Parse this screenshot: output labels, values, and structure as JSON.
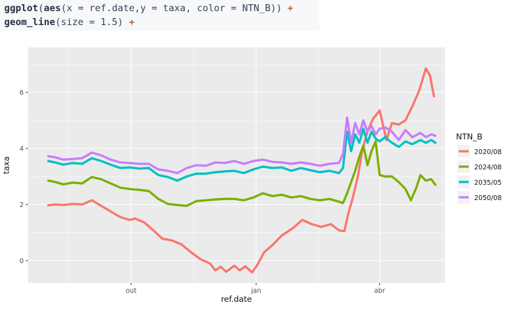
{
  "code": {
    "line1": "ggplot(aes(x = ref.date,y = taxa, color = NTN_B)) +",
    "line2": "geom_line(size = 1.5) +"
  },
  "colors": {
    "panel_bg": "#ebebeb",
    "grid": "#ffffff",
    "series": [
      "#f8766d",
      "#7cae00",
      "#00bfc4",
      "#c77cff"
    ]
  },
  "chart_data": {
    "type": "line",
    "title": "",
    "xlabel": "ref.date",
    "ylabel": "taxa",
    "x_ticks": [
      {
        "label": "out",
        "date": "2019-10-01"
      },
      {
        "label": "jan",
        "date": "2020-01-01"
      },
      {
        "label": "abr",
        "date": "2020-04-01"
      }
    ],
    "y_ticks": [
      0,
      2,
      4,
      6
    ],
    "xlim": [
      "2019-07-17",
      "2020-05-19"
    ],
    "ylim": [
      -0.8,
      7.6
    ],
    "grid": true,
    "legend_title": "NTN_B",
    "legend_position": "right",
    "series": [
      {
        "name": "2020/08",
        "color": "#f8766d",
        "points": [
          [
            "2019-08-01",
            1.97
          ],
          [
            "2019-08-06",
            2.0
          ],
          [
            "2019-08-12",
            1.98
          ],
          [
            "2019-08-19",
            2.02
          ],
          [
            "2019-08-26",
            2.0
          ],
          [
            "2019-09-02",
            2.15
          ],
          [
            "2019-09-09",
            1.95
          ],
          [
            "2019-09-16",
            1.75
          ],
          [
            "2019-09-23",
            1.55
          ],
          [
            "2019-09-30",
            1.45
          ],
          [
            "2019-10-04",
            1.5
          ],
          [
            "2019-10-11",
            1.35
          ],
          [
            "2019-10-18",
            1.05
          ],
          [
            "2019-10-24",
            0.78
          ],
          [
            "2019-10-31",
            0.72
          ],
          [
            "2019-11-07",
            0.58
          ],
          [
            "2019-11-14",
            0.3
          ],
          [
            "2019-11-21",
            0.05
          ],
          [
            "2019-11-28",
            -0.1
          ],
          [
            "2019-12-02",
            -0.35
          ],
          [
            "2019-12-06",
            -0.22
          ],
          [
            "2019-12-10",
            -0.4
          ],
          [
            "2019-12-16",
            -0.18
          ],
          [
            "2019-12-20",
            -0.35
          ],
          [
            "2019-12-24",
            -0.2
          ],
          [
            "2019-12-29",
            -0.42
          ],
          [
            "2020-01-02",
            -0.15
          ],
          [
            "2020-01-07",
            0.3
          ],
          [
            "2020-01-13",
            0.55
          ],
          [
            "2020-01-20",
            0.9
          ],
          [
            "2020-01-28",
            1.15
          ],
          [
            "2020-02-04",
            1.45
          ],
          [
            "2020-02-11",
            1.3
          ],
          [
            "2020-02-18",
            1.2
          ],
          [
            "2020-02-25",
            1.3
          ],
          [
            "2020-03-02",
            1.08
          ],
          [
            "2020-03-06",
            1.05
          ],
          [
            "2020-03-09",
            1.7
          ],
          [
            "2020-03-12",
            2.2
          ],
          [
            "2020-03-16",
            3.0
          ],
          [
            "2020-03-19",
            3.9
          ],
          [
            "2020-03-23",
            4.6
          ],
          [
            "2020-03-27",
            5.05
          ],
          [
            "2020-04-01",
            5.35
          ],
          [
            "2020-04-06",
            4.3
          ],
          [
            "2020-04-10",
            4.9
          ],
          [
            "2020-04-15",
            4.85
          ],
          [
            "2020-04-20",
            5.0
          ],
          [
            "2020-04-25",
            5.5
          ],
          [
            "2020-04-30",
            6.05
          ],
          [
            "2020-05-05",
            6.85
          ],
          [
            "2020-05-08",
            6.6
          ],
          [
            "2020-05-11",
            5.85
          ]
        ]
      },
      {
        "name": "2024/08",
        "color": "#7cae00",
        "points": [
          [
            "2019-08-01",
            2.85
          ],
          [
            "2019-08-06",
            2.8
          ],
          [
            "2019-08-12",
            2.72
          ],
          [
            "2019-08-19",
            2.78
          ],
          [
            "2019-08-26",
            2.75
          ],
          [
            "2019-09-02",
            2.98
          ],
          [
            "2019-09-09",
            2.9
          ],
          [
            "2019-09-16",
            2.75
          ],
          [
            "2019-09-23",
            2.6
          ],
          [
            "2019-09-30",
            2.55
          ],
          [
            "2019-10-07",
            2.52
          ],
          [
            "2019-10-14",
            2.48
          ],
          [
            "2019-10-21",
            2.2
          ],
          [
            "2019-10-28",
            2.02
          ],
          [
            "2019-11-04",
            1.98
          ],
          [
            "2019-11-11",
            1.95
          ],
          [
            "2019-11-18",
            2.12
          ],
          [
            "2019-11-25",
            2.15
          ],
          [
            "2019-12-02",
            2.18
          ],
          [
            "2019-12-09",
            2.2
          ],
          [
            "2019-12-16",
            2.2
          ],
          [
            "2019-12-23",
            2.15
          ],
          [
            "2019-12-30",
            2.25
          ],
          [
            "2020-01-06",
            2.4
          ],
          [
            "2020-01-13",
            2.3
          ],
          [
            "2020-01-20",
            2.35
          ],
          [
            "2020-01-27",
            2.25
          ],
          [
            "2020-02-03",
            2.3
          ],
          [
            "2020-02-10",
            2.2
          ],
          [
            "2020-02-17",
            2.15
          ],
          [
            "2020-02-24",
            2.2
          ],
          [
            "2020-03-02",
            2.1
          ],
          [
            "2020-03-05",
            2.05
          ],
          [
            "2020-03-08",
            2.4
          ],
          [
            "2020-03-11",
            2.8
          ],
          [
            "2020-03-14",
            3.2
          ],
          [
            "2020-03-17",
            3.7
          ],
          [
            "2020-03-20",
            4.1
          ],
          [
            "2020-03-23",
            3.4
          ],
          [
            "2020-03-26",
            3.9
          ],
          [
            "2020-03-29",
            4.25
          ],
          [
            "2020-04-01",
            3.05
          ],
          [
            "2020-04-05",
            3.0
          ],
          [
            "2020-04-10",
            3.0
          ],
          [
            "2020-04-15",
            2.8
          ],
          [
            "2020-04-20",
            2.55
          ],
          [
            "2020-04-24",
            2.15
          ],
          [
            "2020-04-28",
            2.6
          ],
          [
            "2020-05-01",
            3.05
          ],
          [
            "2020-05-05",
            2.85
          ],
          [
            "2020-05-09",
            2.9
          ],
          [
            "2020-05-12",
            2.7
          ]
        ]
      },
      {
        "name": "2035/05",
        "color": "#00bfc4",
        "points": [
          [
            "2019-08-01",
            3.55
          ],
          [
            "2019-08-06",
            3.5
          ],
          [
            "2019-08-12",
            3.42
          ],
          [
            "2019-08-19",
            3.48
          ],
          [
            "2019-08-26",
            3.45
          ],
          [
            "2019-09-02",
            3.65
          ],
          [
            "2019-09-09",
            3.55
          ],
          [
            "2019-09-16",
            3.42
          ],
          [
            "2019-09-23",
            3.3
          ],
          [
            "2019-09-30",
            3.32
          ],
          [
            "2019-10-07",
            3.28
          ],
          [
            "2019-10-14",
            3.3
          ],
          [
            "2019-10-21",
            3.05
          ],
          [
            "2019-10-28",
            2.98
          ],
          [
            "2019-11-04",
            2.85
          ],
          [
            "2019-11-11",
            3.0
          ],
          [
            "2019-11-18",
            3.1
          ],
          [
            "2019-11-25",
            3.1
          ],
          [
            "2019-12-02",
            3.15
          ],
          [
            "2019-12-09",
            3.18
          ],
          [
            "2019-12-16",
            3.2
          ],
          [
            "2019-12-23",
            3.12
          ],
          [
            "2019-12-30",
            3.25
          ],
          [
            "2020-01-06",
            3.35
          ],
          [
            "2020-01-13",
            3.3
          ],
          [
            "2020-01-20",
            3.32
          ],
          [
            "2020-01-27",
            3.2
          ],
          [
            "2020-02-03",
            3.3
          ],
          [
            "2020-02-10",
            3.22
          ],
          [
            "2020-02-17",
            3.15
          ],
          [
            "2020-02-24",
            3.2
          ],
          [
            "2020-03-02",
            3.12
          ],
          [
            "2020-03-05",
            3.3
          ],
          [
            "2020-03-08",
            4.6
          ],
          [
            "2020-03-11",
            3.9
          ],
          [
            "2020-03-14",
            4.5
          ],
          [
            "2020-03-17",
            4.2
          ],
          [
            "2020-03-20",
            4.7
          ],
          [
            "2020-03-23",
            4.2
          ],
          [
            "2020-03-26",
            4.6
          ],
          [
            "2020-03-29",
            4.35
          ],
          [
            "2020-04-01",
            4.25
          ],
          [
            "2020-04-05",
            4.4
          ],
          [
            "2020-04-10",
            4.2
          ],
          [
            "2020-04-15",
            4.05
          ],
          [
            "2020-04-20",
            4.25
          ],
          [
            "2020-04-25",
            4.15
          ],
          [
            "2020-05-01",
            4.3
          ],
          [
            "2020-05-05",
            4.2
          ],
          [
            "2020-05-09",
            4.3
          ],
          [
            "2020-05-12",
            4.2
          ]
        ]
      },
      {
        "name": "2050/08",
        "color": "#c77cff",
        "points": [
          [
            "2019-08-01",
            3.72
          ],
          [
            "2019-08-06",
            3.68
          ],
          [
            "2019-08-12",
            3.6
          ],
          [
            "2019-08-19",
            3.62
          ],
          [
            "2019-08-26",
            3.65
          ],
          [
            "2019-09-02",
            3.85
          ],
          [
            "2019-09-09",
            3.75
          ],
          [
            "2019-09-16",
            3.6
          ],
          [
            "2019-09-23",
            3.5
          ],
          [
            "2019-09-30",
            3.48
          ],
          [
            "2019-10-07",
            3.45
          ],
          [
            "2019-10-14",
            3.45
          ],
          [
            "2019-10-21",
            3.25
          ],
          [
            "2019-10-28",
            3.2
          ],
          [
            "2019-11-04",
            3.12
          ],
          [
            "2019-11-11",
            3.3
          ],
          [
            "2019-11-18",
            3.4
          ],
          [
            "2019-11-25",
            3.38
          ],
          [
            "2019-12-02",
            3.5
          ],
          [
            "2019-12-09",
            3.48
          ],
          [
            "2019-12-16",
            3.55
          ],
          [
            "2019-12-23",
            3.45
          ],
          [
            "2019-12-30",
            3.55
          ],
          [
            "2020-01-06",
            3.6
          ],
          [
            "2020-01-13",
            3.52
          ],
          [
            "2020-01-20",
            3.5
          ],
          [
            "2020-01-27",
            3.45
          ],
          [
            "2020-02-03",
            3.5
          ],
          [
            "2020-02-10",
            3.45
          ],
          [
            "2020-02-17",
            3.38
          ],
          [
            "2020-02-24",
            3.45
          ],
          [
            "2020-03-02",
            3.48
          ],
          [
            "2020-03-05",
            3.8
          ],
          [
            "2020-03-08",
            5.1
          ],
          [
            "2020-03-11",
            4.2
          ],
          [
            "2020-03-14",
            4.9
          ],
          [
            "2020-03-17",
            4.5
          ],
          [
            "2020-03-20",
            5.0
          ],
          [
            "2020-03-23",
            4.6
          ],
          [
            "2020-03-26",
            4.8
          ],
          [
            "2020-03-29",
            4.5
          ],
          [
            "2020-04-01",
            4.7
          ],
          [
            "2020-04-05",
            4.75
          ],
          [
            "2020-04-10",
            4.6
          ],
          [
            "2020-04-15",
            4.3
          ],
          [
            "2020-04-20",
            4.65
          ],
          [
            "2020-04-25",
            4.4
          ],
          [
            "2020-05-01",
            4.55
          ],
          [
            "2020-05-05",
            4.4
          ],
          [
            "2020-05-09",
            4.5
          ],
          [
            "2020-05-12",
            4.45
          ]
        ]
      }
    ]
  }
}
